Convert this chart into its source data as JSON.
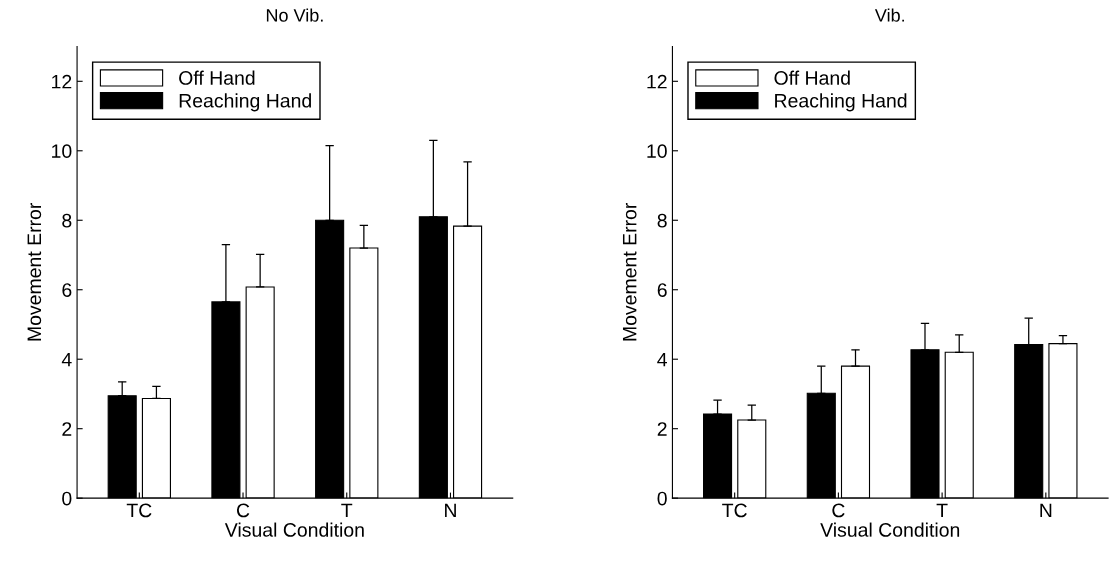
{
  "chart_data": [
    {
      "type": "bar",
      "title": "No Vib.",
      "xlabel": "Visual Condition",
      "ylabel": "Movement Error",
      "categories": [
        "TC",
        "C",
        "T",
        "N"
      ],
      "series": [
        {
          "name": "Reaching Hand",
          "color": "#000000",
          "values": [
            2.95,
            5.65,
            8.0,
            8.1
          ],
          "errors": [
            [
              2.95,
              3.35
            ],
            [
              5.65,
              7.3
            ],
            [
              8.0,
              10.15
            ],
            [
              8.1,
              10.3
            ]
          ]
        },
        {
          "name": "Off Hand",
          "color": "#ffffff",
          "values": [
            2.87,
            6.08,
            7.2,
            7.83
          ],
          "errors": [
            [
              2.87,
              3.22
            ],
            [
              6.08,
              7.02
            ],
            [
              7.2,
              7.85
            ],
            [
              7.83,
              9.68
            ]
          ]
        }
      ],
      "ylim": [
        0,
        13
      ],
      "yticks": [
        0,
        2,
        4,
        6,
        8,
        10,
        12
      ],
      "legend": "top left",
      "grid": false
    },
    {
      "type": "bar",
      "title": "Vib.",
      "xlabel": "Visual Condition",
      "ylabel": "Movement Error",
      "categories": [
        "TC",
        "C",
        "T",
        "N"
      ],
      "series": [
        {
          "name": "Reaching Hand",
          "color": "#000000",
          "values": [
            2.42,
            3.02,
            4.27,
            4.42
          ],
          "errors": [
            [
              2.42,
              2.82
            ],
            [
              3.02,
              3.8
            ],
            [
              4.27,
              5.03
            ],
            [
              4.42,
              5.18
            ]
          ]
        },
        {
          "name": "Off Hand",
          "color": "#ffffff",
          "values": [
            2.25,
            3.8,
            4.2,
            4.45
          ],
          "errors": [
            [
              2.25,
              2.68
            ],
            [
              3.8,
              4.27
            ],
            [
              4.2,
              4.7
            ],
            [
              4.45,
              4.68
            ]
          ]
        }
      ],
      "ylim": [
        0,
        13
      ],
      "yticks": [
        0,
        2,
        4,
        6,
        8,
        10,
        12
      ],
      "legend": "top left",
      "grid": false
    }
  ]
}
